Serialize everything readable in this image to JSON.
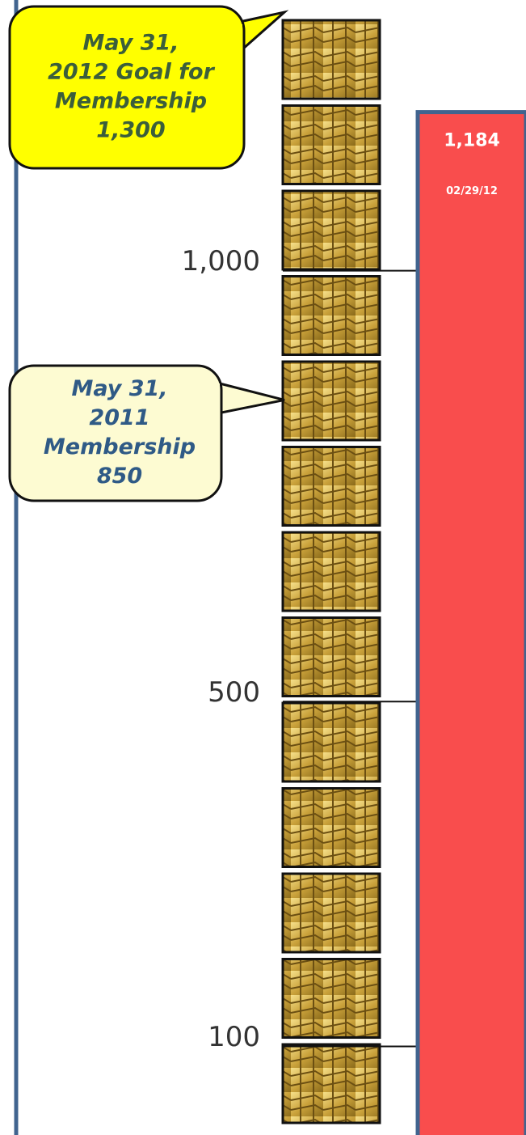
{
  "chart_data": {
    "type": "bar",
    "categories": [
      "02/29/12"
    ],
    "values": [
      1184
    ],
    "value_labels": [
      "1,184"
    ],
    "color": "#f94d4d",
    "ylim": [
      0,
      1300
    ],
    "yticks": [
      100,
      500,
      {
        "value": 1000,
        "label": "1,000"
      }
    ],
    "annotations": [
      {
        "text": [
          "May 31,",
          "2012 Goal for",
          "Membership"
        ],
        "value": 1300,
        "label": "1,300",
        "color": "#ffff00"
      },
      {
        "text": [
          "May 31,",
          "2011",
          "Membership"
        ],
        "value": 850,
        "label": "850",
        "color": "#fdfbd2"
      }
    ]
  }
}
